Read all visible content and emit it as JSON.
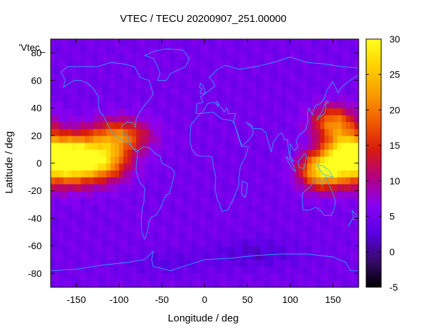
{
  "chart_data": {
    "type": "heatmap",
    "title": "VTEC / TECU 20200907_251.00000",
    "xlabel": "Longitude / deg",
    "ylabel": "Latitude / deg",
    "series_label": "'Vtec_",
    "xlim": [
      -180,
      180
    ],
    "ylim": [
      -90,
      90
    ],
    "x_ticks": [
      -150,
      -100,
      -50,
      0,
      50,
      100,
      150
    ],
    "x_tick_labels": [
      "-150",
      "-100",
      "-50",
      "0",
      "50",
      "100",
      "150"
    ],
    "y_ticks": [
      -80,
      -60,
      -40,
      -20,
      0,
      20,
      40,
      60,
      80
    ],
    "y_tick_labels": [
      "-80",
      "-60",
      "-40",
      "-20",
      "0",
      "20",
      "40",
      "60",
      "80"
    ],
    "colorbar": {
      "range": [
        -5,
        30
      ],
      "ticks": [
        -5,
        0,
        5,
        10,
        15,
        20,
        25,
        30
      ],
      "tick_labels": [
        "-5",
        "0",
        "5",
        "10",
        "15",
        "20",
        "25",
        "30"
      ],
      "palette": [
        "#000000",
        "#380a6e",
        "#5a00e6",
        "#8a00f0",
        "#b40080",
        "#d81c0c",
        "#f05c00",
        "#fa9c00",
        "#ffd000",
        "#ffff20"
      ]
    },
    "grid": false,
    "grid_step_deg": [
      5,
      5
    ],
    "background_level_tecu": 5,
    "peaks": [
      {
        "lon": -158,
        "lat": 3,
        "value": 28,
        "sigma_lon": 28,
        "sigma_lat": 16
      },
      {
        "lon": -120,
        "lat": 2,
        "value": 20,
        "sigma_lon": 30,
        "sigma_lat": 14
      },
      {
        "lon": 165,
        "lat": 5,
        "value": 26,
        "sigma_lon": 25,
        "sigma_lat": 17
      },
      {
        "lon": 135,
        "lat": -5,
        "value": 20,
        "sigma_lon": 24,
        "sigma_lat": 13
      },
      {
        "lon": -100,
        "lat": 20,
        "value": 14,
        "sigma_lon": 35,
        "sigma_lat": 12
      },
      {
        "lon": 150,
        "lat": 30,
        "value": 14,
        "sigma_lon": 25,
        "sigma_lat": 12
      }
    ],
    "troughs": [
      {
        "lon": 60,
        "lat": -65,
        "value": -3,
        "sigma_lon": 50,
        "sigma_lat": 10
      },
      {
        "lon": -40,
        "lat": -72,
        "value": -2,
        "sigma_lon": 50,
        "sigma_lat": 8
      }
    ],
    "coastlines": [
      {
        "name": "north-america",
        "points": [
          [
            -168,
            66
          ],
          [
            -160,
            70
          ],
          [
            -140,
            70
          ],
          [
            -125,
            70
          ],
          [
            -110,
            73
          ],
          [
            -95,
            72
          ],
          [
            -82,
            70
          ],
          [
            -75,
            62
          ],
          [
            -65,
            60
          ],
          [
            -60,
            50
          ],
          [
            -66,
            45
          ],
          [
            -70,
            42
          ],
          [
            -76,
            37
          ],
          [
            -80,
            32
          ],
          [
            -81,
            26
          ],
          [
            -83,
            29
          ],
          [
            -90,
            30
          ],
          [
            -97,
            27
          ],
          [
            -97,
            22
          ],
          [
            -90,
            20
          ],
          [
            -88,
            16
          ],
          [
            -84,
            11
          ],
          [
            -80,
            8
          ],
          [
            -78,
            9
          ],
          [
            -84,
            11
          ],
          [
            -86,
            13
          ],
          [
            -92,
            15
          ],
          [
            -105,
            20
          ],
          [
            -110,
            24
          ],
          [
            -115,
            30
          ],
          [
            -118,
            34
          ],
          [
            -123,
            38
          ],
          [
            -124,
            42
          ],
          [
            -124,
            48
          ],
          [
            -130,
            54
          ],
          [
            -137,
            58
          ],
          [
            -145,
            60
          ],
          [
            -152,
            60
          ],
          [
            -158,
            58
          ],
          [
            -165,
            55
          ],
          [
            -163,
            60
          ],
          [
            -166,
            64
          ],
          [
            -168,
            66
          ]
        ]
      },
      {
        "name": "south-america",
        "points": [
          [
            -78,
            9
          ],
          [
            -72,
            12
          ],
          [
            -64,
            11
          ],
          [
            -58,
            7
          ],
          [
            -52,
            5
          ],
          [
            -50,
            0
          ],
          [
            -44,
            -2
          ],
          [
            -38,
            -4
          ],
          [
            -35,
            -7
          ],
          [
            -37,
            -12
          ],
          [
            -39,
            -17
          ],
          [
            -41,
            -22
          ],
          [
            -45,
            -23
          ],
          [
            -48,
            -27
          ],
          [
            -52,
            -33
          ],
          [
            -57,
            -38
          ],
          [
            -62,
            -39
          ],
          [
            -65,
            -42
          ],
          [
            -66,
            -47
          ],
          [
            -68,
            -52
          ],
          [
            -70,
            -55
          ],
          [
            -72,
            -53
          ],
          [
            -74,
            -48
          ],
          [
            -74,
            -40
          ],
          [
            -73,
            -33
          ],
          [
            -71,
            -28
          ],
          [
            -70,
            -18
          ],
          [
            -76,
            -14
          ],
          [
            -80,
            -6
          ],
          [
            -80,
            -2
          ],
          [
            -78,
            9
          ]
        ]
      },
      {
        "name": "africa",
        "points": [
          [
            -17,
            21
          ],
          [
            -16,
            28
          ],
          [
            -9,
            33
          ],
          [
            -5,
            36
          ],
          [
            10,
            37
          ],
          [
            20,
            32
          ],
          [
            32,
            31
          ],
          [
            35,
            28
          ],
          [
            43,
            12
          ],
          [
            51,
            12
          ],
          [
            48,
            5
          ],
          [
            42,
            -2
          ],
          [
            40,
            -10
          ],
          [
            40,
            -16
          ],
          [
            35,
            -24
          ],
          [
            32,
            -28
          ],
          [
            27,
            -34
          ],
          [
            20,
            -35
          ],
          [
            18,
            -30
          ],
          [
            15,
            -27
          ],
          [
            12,
            -18
          ],
          [
            13,
            -10
          ],
          [
            10,
            -2
          ],
          [
            9,
            4
          ],
          [
            5,
            5
          ],
          [
            -5,
            5
          ],
          [
            -10,
            6
          ],
          [
            -15,
            10
          ],
          [
            -17,
            15
          ],
          [
            -17,
            21
          ]
        ]
      },
      {
        "name": "eurasia",
        "points": [
          [
            -10,
            36
          ],
          [
            -9,
            43
          ],
          [
            -2,
            44
          ],
          [
            -5,
            48
          ],
          [
            2,
            51
          ],
          [
            8,
            54
          ],
          [
            12,
            56
          ],
          [
            10,
            59
          ],
          [
            5,
            62
          ],
          [
            15,
            68
          ],
          [
            25,
            71
          ],
          [
            40,
            68
          ],
          [
            60,
            70
          ],
          [
            80,
            73
          ],
          [
            100,
            77
          ],
          [
            120,
            73
          ],
          [
            140,
            72
          ],
          [
            160,
            70
          ],
          [
            180,
            69
          ],
          [
            180,
            64
          ],
          [
            170,
            60
          ],
          [
            160,
            55
          ],
          [
            156,
            51
          ],
          [
            150,
            59
          ],
          [
            143,
            53
          ],
          [
            140,
            47
          ],
          [
            135,
            43
          ],
          [
            130,
            42
          ],
          [
            127,
            38
          ],
          [
            126,
            35
          ],
          [
            122,
            40
          ],
          [
            120,
            36
          ],
          [
            121,
            31
          ],
          [
            118,
            24
          ],
          [
            110,
            20
          ],
          [
            107,
            16
          ],
          [
            109,
            12
          ],
          [
            105,
            9
          ],
          [
            100,
            14
          ],
          [
            100,
            5
          ],
          [
            104,
            1
          ],
          [
            100,
            3
          ],
          [
            98,
            9
          ],
          [
            97,
            17
          ],
          [
            94,
            17
          ],
          [
            90,
            22
          ],
          [
            87,
            21
          ],
          [
            80,
            15
          ],
          [
            78,
            8
          ],
          [
            73,
            18
          ],
          [
            72,
            22
          ],
          [
            66,
            25
          ],
          [
            57,
            25
          ],
          [
            56,
            27
          ],
          [
            50,
            29
          ],
          [
            48,
            30
          ],
          [
            55,
            26
          ],
          [
            57,
            22
          ],
          [
            52,
            17
          ],
          [
            45,
            13
          ],
          [
            43,
            13
          ],
          [
            39,
            21
          ],
          [
            35,
            28
          ],
          [
            34,
            31
          ],
          [
            36,
            36
          ],
          [
            28,
            36
          ],
          [
            26,
            40
          ],
          [
            23,
            37
          ],
          [
            20,
            40
          ],
          [
            18,
            41
          ],
          [
            14,
            45
          ],
          [
            16,
            41
          ],
          [
            12,
            44
          ],
          [
            8,
            44
          ],
          [
            3,
            43
          ],
          [
            0,
            39
          ],
          [
            -5,
            36
          ],
          [
            -10,
            36
          ]
        ]
      },
      {
        "name": "australia",
        "points": [
          [
            114,
            -22
          ],
          [
            122,
            -18
          ],
          [
            130,
            -12
          ],
          [
            136,
            -12
          ],
          [
            137,
            -16
          ],
          [
            142,
            -10
          ],
          [
            145,
            -15
          ],
          [
            150,
            -22
          ],
          [
            153,
            -28
          ],
          [
            151,
            -34
          ],
          [
            148,
            -38
          ],
          [
            140,
            -38
          ],
          [
            135,
            -34
          ],
          [
            130,
            -32
          ],
          [
            123,
            -34
          ],
          [
            115,
            -34
          ],
          [
            114,
            -26
          ],
          [
            114,
            -22
          ]
        ]
      },
      {
        "name": "antarctica",
        "points": [
          [
            -180,
            -78
          ],
          [
            -150,
            -77
          ],
          [
            -120,
            -74
          ],
          [
            -90,
            -72
          ],
          [
            -70,
            -70
          ],
          [
            -60,
            -64
          ],
          [
            -62,
            -70
          ],
          [
            -60,
            -75
          ],
          [
            -40,
            -78
          ],
          [
            -20,
            -74
          ],
          [
            0,
            -70
          ],
          [
            30,
            -69
          ],
          [
            60,
            -67
          ],
          [
            90,
            -66
          ],
          [
            120,
            -66
          ],
          [
            150,
            -68
          ],
          [
            165,
            -72
          ],
          [
            170,
            -78
          ],
          [
            180,
            -78
          ]
        ]
      },
      {
        "name": "greenland",
        "points": [
          [
            -55,
            60
          ],
          [
            -45,
            60
          ],
          [
            -40,
            65
          ],
          [
            -22,
            70
          ],
          [
            -18,
            76
          ],
          [
            -25,
            82
          ],
          [
            -45,
            83
          ],
          [
            -60,
            81
          ],
          [
            -70,
            78
          ],
          [
            -60,
            76
          ],
          [
            -55,
            70
          ],
          [
            -52,
            65
          ],
          [
            -55,
            60
          ]
        ]
      },
      {
        "name": "great-britain",
        "points": [
          [
            -5,
            50
          ],
          [
            1,
            51
          ],
          [
            0,
            53
          ],
          [
            -2,
            56
          ],
          [
            -5,
            58
          ],
          [
            -6,
            55
          ],
          [
            -3,
            54
          ],
          [
            -5,
            52
          ],
          [
            -5,
            50
          ]
        ]
      },
      {
        "name": "madagascar",
        "points": [
          [
            44,
            -13
          ],
          [
            50,
            -15
          ],
          [
            49,
            -22
          ],
          [
            47,
            -25
          ],
          [
            43,
            -22
          ],
          [
            44,
            -13
          ]
        ]
      },
      {
        "name": "japan",
        "points": [
          [
            131,
            31
          ],
          [
            135,
            34
          ],
          [
            140,
            36
          ],
          [
            142,
            40
          ],
          [
            141,
            43
          ],
          [
            145,
            44
          ],
          [
            142,
            45
          ],
          [
            139,
            40
          ],
          [
            137,
            37
          ],
          [
            133,
            34
          ],
          [
            131,
            31
          ]
        ]
      },
      {
        "name": "borneo",
        "points": [
          [
            109,
            1
          ],
          [
            113,
            4
          ],
          [
            117,
            7
          ],
          [
            119,
            5
          ],
          [
            118,
            1
          ],
          [
            116,
            -4
          ],
          [
            110,
            -3
          ],
          [
            109,
            1
          ]
        ]
      },
      {
        "name": "sumatra",
        "points": [
          [
            95,
            5
          ],
          [
            100,
            2
          ],
          [
            104,
            -2
          ],
          [
            106,
            -6
          ],
          [
            102,
            -4
          ],
          [
            97,
            2
          ],
          [
            95,
            5
          ]
        ]
      },
      {
        "name": "new-guinea",
        "points": [
          [
            131,
            -1
          ],
          [
            138,
            -2
          ],
          [
            145,
            -5
          ],
          [
            150,
            -10
          ],
          [
            143,
            -9
          ],
          [
            138,
            -8
          ],
          [
            131,
            -1
          ]
        ]
      },
      {
        "name": "new-zealand",
        "points": [
          [
            172,
            -34
          ],
          [
            178,
            -38
          ],
          [
            175,
            -41
          ],
          [
            172,
            -41
          ],
          [
            168,
            -46
          ],
          [
            170,
            -43
          ],
          [
            174,
            -39
          ],
          [
            172,
            -34
          ]
        ]
      }
    ]
  }
}
